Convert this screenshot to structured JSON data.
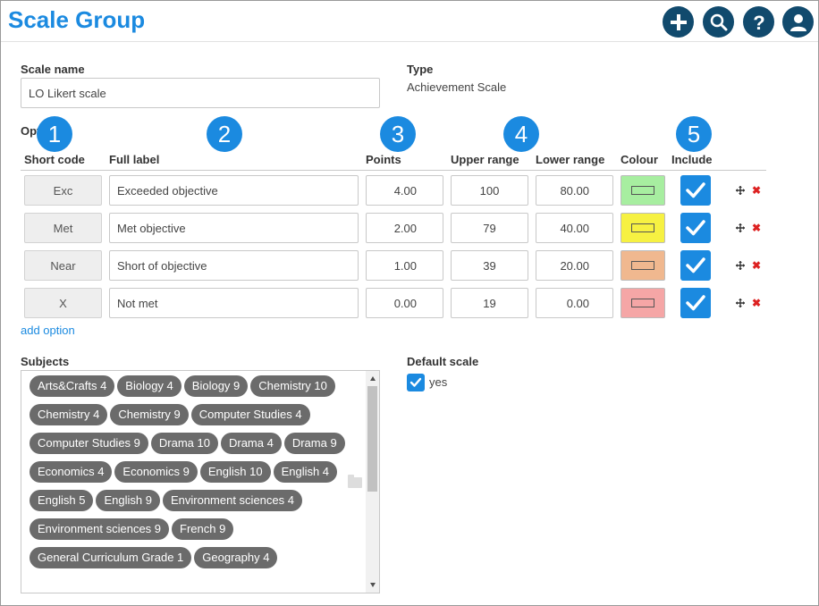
{
  "header": {
    "title": "Scale Group",
    "buttons": [
      {
        "name": "add-button",
        "icon": "plus-icon"
      },
      {
        "name": "search-button",
        "icon": "search-icon"
      },
      {
        "name": "help-button",
        "icon": "question-icon"
      },
      {
        "name": "user-button",
        "icon": "user-icon"
      }
    ]
  },
  "form": {
    "scale_name_label": "Scale name",
    "scale_name_value": "LO Likert scale",
    "type_label": "Type",
    "type_value": "Achievement Scale",
    "options_label": "Options"
  },
  "markers": [
    "1",
    "2",
    "3",
    "4",
    "5"
  ],
  "columns": {
    "short_code": "Short code",
    "full_label": "Full label",
    "points": "Points",
    "upper_range": "Upper range",
    "lower_range": "Lower range",
    "colour": "Colour",
    "include": "Include"
  },
  "options": [
    {
      "short": "Exc",
      "label": "Exceeded objective",
      "points": "4.00",
      "upper": "100",
      "lower": "80.00",
      "colour": "#a7eea0",
      "include": true
    },
    {
      "short": "Met",
      "label": "Met objective",
      "points": "2.00",
      "upper": "79",
      "lower": "40.00",
      "colour": "#f6f142",
      "include": true
    },
    {
      "short": "Near",
      "label": "Short of objective",
      "points": "1.00",
      "upper": "39",
      "lower": "20.00",
      "colour": "#f0b88f",
      "include": true
    },
    {
      "short": "X",
      "label": "Not met",
      "points": "0.00",
      "upper": "19",
      "lower": "0.00",
      "colour": "#f5a6a6",
      "include": true
    }
  ],
  "add_option_label": "add option",
  "subjects": {
    "label": "Subjects",
    "items": [
      "Arts&Crafts 4",
      "Biology 4",
      "Biology 9",
      "Chemistry 10",
      "Chemistry 4",
      "Chemistry 9",
      "Computer Studies 4",
      "Computer Studies 9",
      "Drama 10",
      "Drama 4",
      "Drama 9",
      "Economics 4",
      "Economics 9",
      "English 10",
      "English 4",
      "English 5",
      "English 9",
      "Environment sciences 4",
      "Environment sciences 9",
      "French 9",
      "General Curriculum Grade 1",
      "Geography 4"
    ]
  },
  "default_scale": {
    "label": "Default scale",
    "checkbox_label": "yes",
    "checked": true
  },
  "colors": {
    "accent": "#1b8ae0",
    "header_button": "#114a6d",
    "tag": "#6b6b6b",
    "delete": "#dd2222"
  }
}
